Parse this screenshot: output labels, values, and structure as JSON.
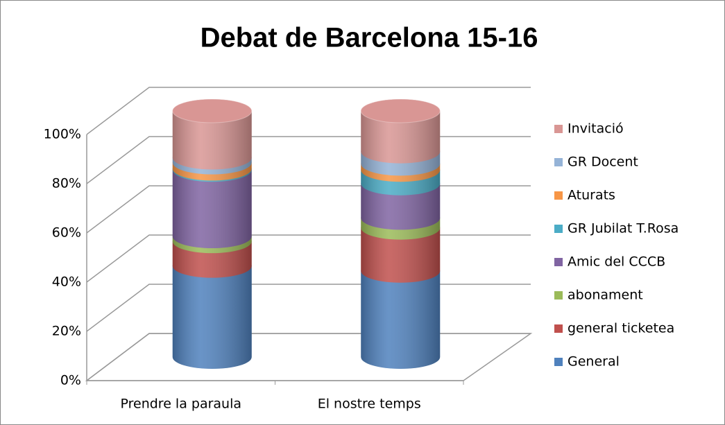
{
  "chart_data": {
    "type": "cylinder-stacked-percent",
    "title": "Debat de Barcelona 15-16",
    "categories": [
      "Prendre la paraula",
      "El nostre temps"
    ],
    "series": [
      {
        "name": "General",
        "color": "#4f81bd",
        "values": [
          37,
          35
        ]
      },
      {
        "name": "general ticketea",
        "color": "#c0504d",
        "values": [
          10,
          17.5
        ]
      },
      {
        "name": "abonament",
        "color": "#9bbb59",
        "values": [
          2,
          4
        ]
      },
      {
        "name": "Amic del CCCB",
        "color": "#8064a2",
        "values": [
          27,
          14
        ]
      },
      {
        "name": "GR Jubilat T.Rosa",
        "color": "#4bacc6",
        "values": [
          0.5,
          5.5
        ]
      },
      {
        "name": "Aturats",
        "color": "#f79646",
        "values": [
          2.5,
          2.5
        ]
      },
      {
        "name": "GR Docent",
        "color": "#95b3d7",
        "values": [
          2,
          5
        ]
      },
      {
        "name": "Invitació",
        "color": "#d99694",
        "values": [
          19,
          16.5
        ]
      }
    ],
    "ylim": [
      0,
      100
    ],
    "yticks": [
      {
        "value": 0,
        "label": "0%"
      },
      {
        "value": 20,
        "label": "20%"
      },
      {
        "value": 40,
        "label": "40%"
      },
      {
        "value": 60,
        "label": "60%"
      },
      {
        "value": 80,
        "label": "80%"
      },
      {
        "value": 100,
        "label": "100%"
      }
    ],
    "grid": true,
    "legend": "right"
  }
}
